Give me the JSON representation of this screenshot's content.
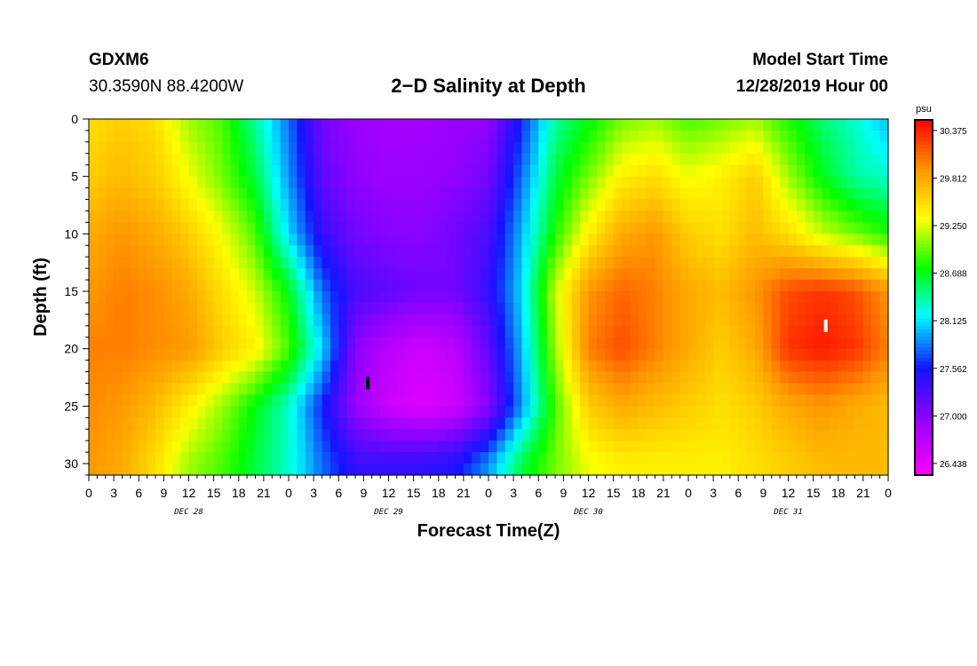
{
  "header": {
    "station_id": "GDXM6",
    "coordinates": "30.3590N 88.4200W",
    "title": "2−D Salinity at Depth",
    "model_start_label": "Model Start Time",
    "model_start_value": "12/28/2019 Hour 00"
  },
  "chart_data": {
    "type": "heatmap",
    "title": "2−D Salinity at Depth",
    "xlabel": "Forecast Time(Z)",
    "ylabel": "Depth (ft)",
    "xlim_hours": [
      0,
      96
    ],
    "ylim_ft": [
      0,
      31
    ],
    "y_inverted": true,
    "x_tick_labels": [
      "0",
      "3",
      "6",
      "9",
      "12",
      "15",
      "18",
      "21",
      "0",
      "3",
      "6",
      "9",
      "12",
      "15",
      "18",
      "21",
      "0",
      "3",
      "6",
      "9",
      "12",
      "15",
      "18",
      "21",
      "0",
      "3",
      "6",
      "9",
      "12",
      "15",
      "18",
      "21",
      "0"
    ],
    "y_tick_labels": [
      "0",
      "5",
      "10",
      "15",
      "20",
      "25",
      "30"
    ],
    "y_ticks": [
      0,
      5,
      10,
      15,
      20,
      25,
      30
    ],
    "day_labels": [
      "DEC 28",
      "DEC 29",
      "DEC 30",
      "DEC 31"
    ],
    "colorbar": {
      "unit": "psu",
      "ticks": [
        "30.375",
        "29.812",
        "29.250",
        "28.688",
        "28.125",
        "27.562",
        "27.000",
        "26.438"
      ],
      "min": 26.3,
      "max": 30.5
    },
    "salinity_at_depth_psu": {
      "depths_ft": [
        0,
        5,
        10,
        15,
        20,
        25,
        30
      ],
      "time_hours": [
        0,
        4,
        8,
        12,
        16,
        20,
        24,
        28,
        32,
        36,
        40,
        44,
        48,
        52,
        56,
        60,
        64,
        68,
        72,
        76,
        80,
        84,
        88,
        92,
        96
      ],
      "values": [
        [
          29.5,
          29.6,
          29.5,
          29.1,
          28.9,
          28.4,
          27.8,
          27.1,
          26.9,
          26.85,
          26.85,
          26.9,
          26.95,
          27.6,
          28.4,
          28.7,
          29.0,
          29.1,
          28.9,
          29.0,
          29.1,
          28.8,
          28.5,
          28.3,
          28.0
        ],
        [
          29.6,
          29.7,
          29.6,
          29.3,
          29.0,
          28.6,
          27.9,
          27.2,
          26.95,
          26.9,
          26.9,
          26.95,
          27.1,
          27.8,
          28.6,
          29.0,
          29.4,
          29.5,
          29.3,
          29.4,
          29.6,
          29.1,
          28.7,
          28.4,
          28.3
        ],
        [
          29.8,
          29.9,
          29.8,
          29.6,
          29.3,
          28.9,
          28.1,
          27.4,
          27.1,
          27.0,
          27.0,
          27.1,
          27.3,
          28.0,
          28.8,
          29.4,
          29.8,
          29.9,
          29.6,
          29.5,
          29.7,
          29.5,
          29.2,
          29.0,
          28.8
        ],
        [
          29.9,
          30.0,
          29.95,
          29.8,
          29.5,
          29.2,
          28.7,
          27.8,
          27.3,
          27.2,
          27.1,
          27.1,
          27.4,
          28.1,
          29.2,
          29.9,
          30.1,
          30.0,
          29.8,
          29.7,
          29.9,
          30.2,
          30.3,
          30.2,
          29.9
        ],
        [
          30.0,
          30.0,
          29.95,
          29.9,
          29.6,
          29.4,
          28.9,
          28.1,
          27.0,
          26.7,
          26.6,
          26.7,
          27.2,
          28.0,
          29.1,
          30.0,
          30.2,
          30.0,
          29.8,
          29.6,
          29.8,
          30.3,
          30.4,
          30.3,
          30.0
        ],
        [
          29.95,
          29.9,
          29.7,
          29.4,
          29.1,
          28.7,
          28.3,
          27.6,
          26.9,
          26.6,
          26.5,
          26.6,
          27.0,
          27.9,
          28.9,
          29.6,
          29.8,
          29.7,
          29.6,
          29.5,
          29.6,
          29.8,
          29.9,
          29.8,
          29.7
        ],
        [
          29.9,
          29.8,
          29.5,
          29.1,
          28.9,
          28.6,
          28.3,
          27.8,
          27.4,
          27.4,
          27.4,
          27.5,
          27.9,
          28.6,
          29.0,
          29.3,
          29.4,
          29.4,
          29.4,
          29.4,
          29.5,
          29.6,
          29.7,
          29.7,
          29.7
        ]
      ]
    },
    "markers": [
      {
        "hour": 33.5,
        "depth_ft": 23,
        "color": "#000000"
      },
      {
        "hour": 88.5,
        "depth_ft": 18,
        "color": "#ffffff"
      }
    ]
  }
}
